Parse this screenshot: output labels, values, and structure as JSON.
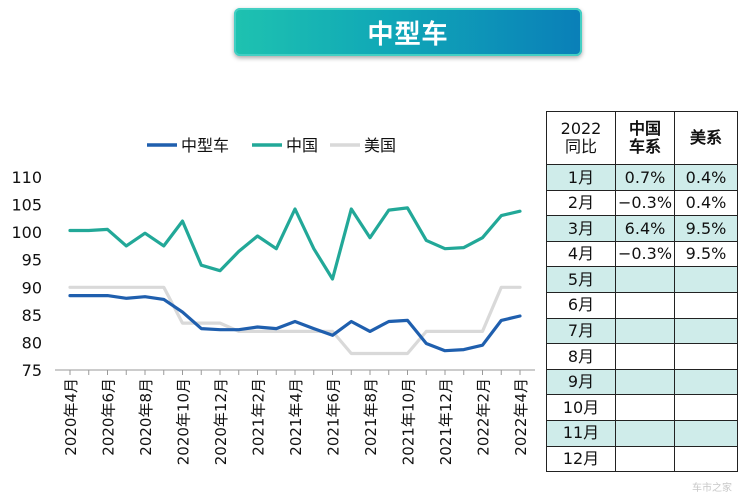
{
  "banner_title": "中型车",
  "chart_data": {
    "type": "line",
    "x": [
      "2020年4月",
      "2020年5月",
      "2020年6月",
      "2020年7月",
      "2020年8月",
      "2020年9月",
      "2020年10月",
      "2020年11月",
      "2020年12月",
      "2021年1月",
      "2021年2月",
      "2021年3月",
      "2021年4月",
      "2021年5月",
      "2021年6月",
      "2021年7月",
      "2021年8月",
      "2021年9月",
      "2021年10月",
      "2021年11月",
      "2021年12月",
      "2022年1月",
      "2022年2月",
      "2022年3月",
      "2022年4月"
    ],
    "tick_labels": [
      "2020年4月",
      "2020年6月",
      "2020年8月",
      "2020年10月",
      "2020年12月",
      "2021年2月",
      "2021年4月",
      "2021年6月",
      "2021年8月",
      "2021年10月",
      "2021年12月",
      "2022年2月",
      "2022年4月"
    ],
    "series": [
      {
        "name": "中型车",
        "color": "#1f5fae",
        "values": [
          88.5,
          88.5,
          88.5,
          88.0,
          88.3,
          87.8,
          85.5,
          82.5,
          82.3,
          82.3,
          82.8,
          82.5,
          83.8,
          82.5,
          81.3,
          83.8,
          82.0,
          83.8,
          84.0,
          79.8,
          78.5,
          78.7,
          79.5,
          84.0,
          84.8
        ]
      },
      {
        "name": "中国",
        "color": "#22a898",
        "values": [
          100.3,
          100.3,
          100.5,
          97.5,
          99.8,
          97.5,
          102.0,
          94.0,
          93.0,
          96.5,
          99.3,
          97.0,
          104.2,
          97.0,
          91.5,
          104.2,
          99.0,
          104.0,
          104.4,
          98.5,
          97.0,
          97.2,
          99.0,
          103.0,
          103.8
        ]
      },
      {
        "name": "美国",
        "color": "#d9d9d9",
        "values": [
          90.0,
          90.0,
          90.0,
          90.0,
          90.0,
          90.0,
          83.5,
          83.5,
          83.5,
          82.0,
          82.0,
          82.0,
          82.0,
          82.0,
          82.0,
          78.0,
          78.0,
          78.0,
          78.0,
          82.0,
          82.0,
          82.0,
          82.0,
          90.0,
          90.0
        ]
      }
    ],
    "yticks": [
      75,
      80,
      85,
      90,
      95,
      100,
      105,
      110
    ],
    "ylim": [
      75,
      110
    ],
    "legend_position": "top-center"
  },
  "table": {
    "headers": [
      "2022\n同比",
      "中国\n车系",
      "美系"
    ],
    "rows": [
      [
        "1月",
        "0.7%",
        "0.4%"
      ],
      [
        "2月",
        "−0.3%",
        "0.4%"
      ],
      [
        "3月",
        "6.4%",
        "9.5%"
      ],
      [
        "4月",
        "−0.3%",
        "9.5%"
      ],
      [
        "5月",
        "",
        ""
      ],
      [
        "6月",
        "",
        ""
      ],
      [
        "7月",
        "",
        ""
      ],
      [
        "8月",
        "",
        ""
      ],
      [
        "9月",
        "",
        ""
      ],
      [
        "10月",
        "",
        ""
      ],
      [
        "11月",
        "",
        ""
      ],
      [
        "12月",
        "",
        ""
      ]
    ]
  },
  "watermark": "车市之家"
}
